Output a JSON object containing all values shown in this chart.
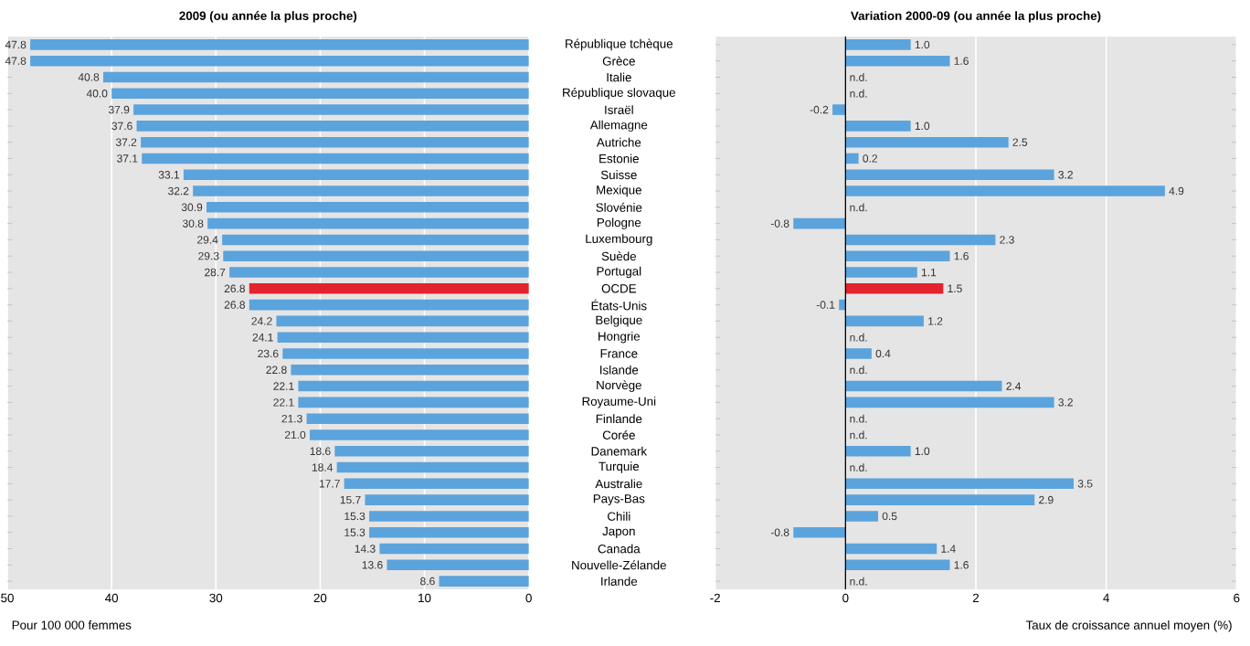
{
  "chart_data": [
    {
      "type": "bar",
      "orientation": "horizontal",
      "title": "2009 (ou année la plus proche)",
      "xlabel": "Pour 100 000 femmes",
      "categories": [
        "République tchèque",
        "Grèce",
        "Italie",
        "République slovaque",
        "Israël",
        "Allemagne",
        "Autriche",
        "Estonie",
        "Suisse",
        "Mexique",
        "Slovénie",
        "Pologne",
        "Luxembourg",
        "Suède",
        "Portugal",
        "OCDE",
        "États-Unis",
        "Belgique",
        "Hongrie",
        "France",
        "Islande",
        "Norvège",
        "Royaume-Uni",
        "Finlande",
        "Corée",
        "Danemark",
        "Turquie",
        "Australie",
        "Pays-Bas",
        "Chili",
        "Japon",
        "Canada",
        "Nouvelle-Zélande",
        "Irlande"
      ],
      "values": [
        47.8,
        47.8,
        40.8,
        40.0,
        37.9,
        37.6,
        37.2,
        37.1,
        33.1,
        32.2,
        30.9,
        30.8,
        29.4,
        29.3,
        28.7,
        26.8,
        26.8,
        24.2,
        24.1,
        23.6,
        22.8,
        22.1,
        22.1,
        21.3,
        21.0,
        18.6,
        18.4,
        17.7,
        15.7,
        15.3,
        15.3,
        14.3,
        13.6,
        8.6
      ],
      "colors": [
        "#5ba3dc",
        "#5ba3dc",
        "#5ba3dc",
        "#5ba3dc",
        "#5ba3dc",
        "#5ba3dc",
        "#5ba3dc",
        "#5ba3dc",
        "#5ba3dc",
        "#5ba3dc",
        "#5ba3dc",
        "#5ba3dc",
        "#5ba3dc",
        "#5ba3dc",
        "#5ba3dc",
        "#e3232d",
        "#5ba3dc",
        "#5ba3dc",
        "#5ba3dc",
        "#5ba3dc",
        "#5ba3dc",
        "#5ba3dc",
        "#5ba3dc",
        "#5ba3dc",
        "#5ba3dc",
        "#5ba3dc",
        "#5ba3dc",
        "#5ba3dc",
        "#5ba3dc",
        "#5ba3dc",
        "#5ba3dc",
        "#5ba3dc",
        "#5ba3dc",
        "#5ba3dc"
      ],
      "value_labels": [
        "47.8",
        "47.8",
        "40.8",
        "40.0",
        "37.9",
        "37.6",
        "37.2",
        "37.1",
        "33.1",
        "32.2",
        "30.9",
        "30.8",
        "29.4",
        "29.3",
        "28.7",
        "26.8",
        "26.8",
        "24.2",
        "24.1",
        "23.6",
        "22.8",
        "22.1",
        "22.1",
        "21.3",
        "21.0",
        "18.6",
        "18.4",
        "17.7",
        "15.7",
        "15.3",
        "15.3",
        "14.3",
        "13.6",
        "8.6"
      ],
      "xlim": [
        50,
        0
      ],
      "xticks": [
        50,
        40,
        30,
        20,
        10,
        0
      ],
      "grid": "x"
    },
    {
      "type": "bar",
      "orientation": "horizontal",
      "title": "Variation 2000-09 (ou année la plus proche)",
      "xlabel": "Taux de croissance annuel moyen (%)",
      "categories": [
        null,
        null,
        null,
        null,
        null,
        null,
        null,
        null,
        null,
        null,
        null,
        null,
        null,
        null,
        null,
        null,
        null,
        null,
        null,
        null,
        null,
        null,
        null,
        null,
        null,
        null,
        null,
        null,
        null,
        null,
        null,
        null,
        null,
        null
      ],
      "values": [
        1.0,
        1.6,
        null,
        null,
        -0.2,
        1.0,
        2.5,
        0.2,
        3.2,
        4.9,
        null,
        -0.8,
        2.3,
        1.6,
        1.1,
        1.5,
        -0.1,
        1.2,
        null,
        0.4,
        null,
        2.4,
        3.2,
        null,
        null,
        1.0,
        null,
        3.5,
        2.9,
        0.5,
        -0.8,
        1.4,
        1.6,
        null
      ],
      "value_labels": [
        "1.0",
        "1.6",
        "n.d.",
        "n.d.",
        "-0.2",
        "1.0",
        "2.5",
        "0.2",
        "3.2",
        "4.9",
        "n.d.",
        "-0.8",
        "2.3",
        "1.6",
        "1.1",
        "1.5",
        "-0.1",
        "1.2",
        "n.d.",
        "0.4",
        "n.d.",
        "2.4",
        "3.2",
        "n.d.",
        "n.d.",
        "1.0",
        "n.d.",
        "3.5",
        "2.9",
        "0.5",
        "-0.8",
        "1.4",
        "1.6",
        "n.d."
      ],
      "colors": [
        "#5ba3dc",
        "#5ba3dc",
        "#5ba3dc",
        "#5ba3dc",
        "#5ba3dc",
        "#5ba3dc",
        "#5ba3dc",
        "#5ba3dc",
        "#5ba3dc",
        "#5ba3dc",
        "#5ba3dc",
        "#5ba3dc",
        "#5ba3dc",
        "#5ba3dc",
        "#5ba3dc",
        "#e3232d",
        "#5ba3dc",
        "#5ba3dc",
        "#5ba3dc",
        "#5ba3dc",
        "#5ba3dc",
        "#5ba3dc",
        "#5ba3dc",
        "#5ba3dc",
        "#5ba3dc",
        "#5ba3dc",
        "#5ba3dc",
        "#5ba3dc",
        "#5ba3dc",
        "#5ba3dc",
        "#5ba3dc",
        "#5ba3dc",
        "#5ba3dc",
        "#5ba3dc"
      ],
      "xlim": [
        -2,
        6
      ],
      "xticks": [
        -2,
        0,
        2,
        4,
        6
      ],
      "grid": "x",
      "tick_labels": "x"
    }
  ]
}
